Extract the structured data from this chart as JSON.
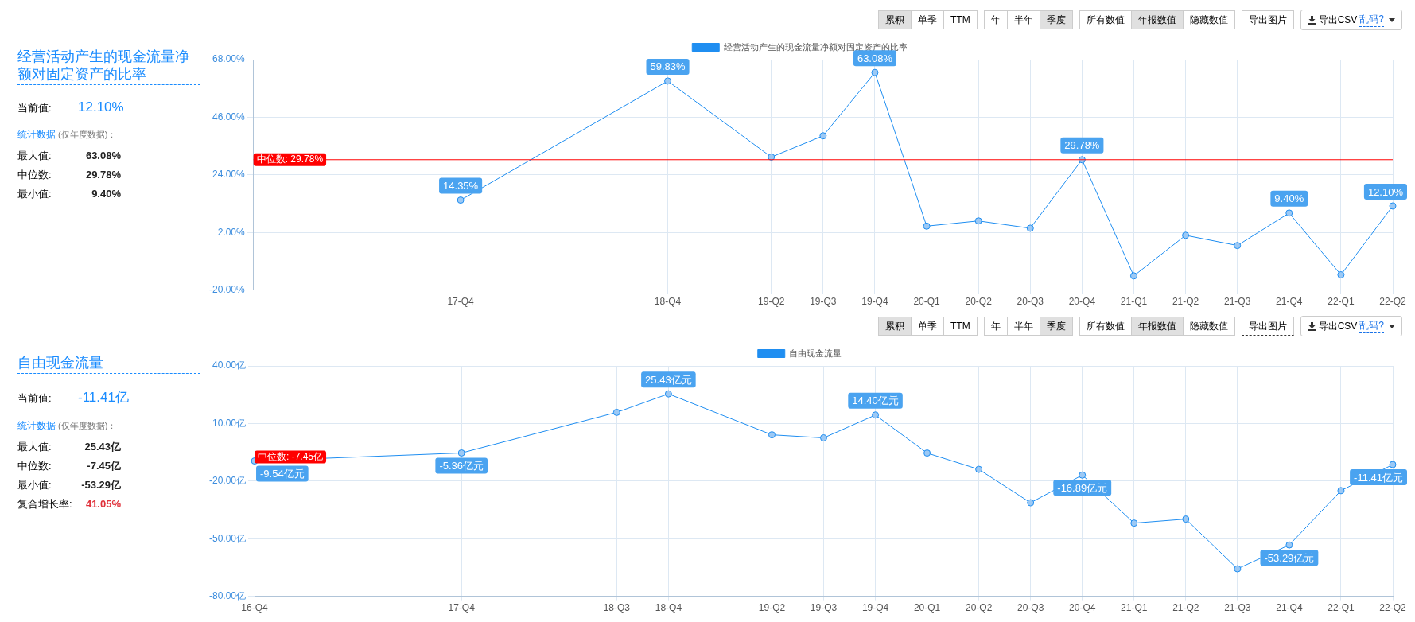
{
  "chart_data": [
    {
      "type": "line",
      "legend": "top",
      "grid": true,
      "marker": "circle",
      "annotations": [
        "经营活动产生的现金流量净额对固定资产的比率",
        "当前值:\t12.10%",
        "统计数据\t(仅年度数据)：",
        "最大值:\t63.08%",
        "中位数:\t29.78%",
        "最小值:\t9.40%",
        "累积",
        "单季",
        "TTM",
        "年",
        "半年",
        "季度",
        "所有数值",
        "年报数值",
        "隐藏数值",
        "导出图片",
        "导出CSV",
        "乱码?"
      ],
      "categories": [
        null,
        null,
        null,
        null,
        "17-Q4",
        null,
        null,
        null,
        "18-Q4",
        null,
        "19-Q2",
        "19-Q3",
        "19-Q4",
        "20-Q1",
        "20-Q2",
        "20-Q3",
        "20-Q4",
        "21-Q1",
        "21-Q2",
        "21-Q3",
        "21-Q4",
        "22-Q1",
        "22-Q2"
      ],
      "series": [
        {
          "name": "经营活动产生的现金流量净额对固定资产的比率",
          "color": "#1f8ef1",
          "values": [
            null,
            null,
            null,
            null,
            14.35,
            null,
            null,
            null,
            59.83,
            null,
            30.8,
            38.9,
            63.08,
            4.4,
            6.4,
            3.6,
            29.78,
            -14.6,
            0.9,
            -3,
            9.4,
            -14.2,
            12.1
          ],
          "value_labels": [
            null,
            null,
            null,
            null,
            "14.35%",
            null,
            null,
            null,
            "59.83%",
            null,
            null,
            null,
            "63.08%",
            null,
            null,
            null,
            "29.78%",
            null,
            null,
            null,
            "9.40%",
            null,
            "12.10%"
          ]
        }
      ],
      "ylim": [
        -20,
        68
      ],
      "yticks": [
        {
          "value": -20,
          "label": "-20.00%"
        },
        {
          "value": 2,
          "label": "2.00%"
        },
        {
          "value": 24,
          "label": "24.00%"
        },
        {
          "value": 46,
          "label": "46.00%"
        },
        {
          "value": 68,
          "label": "68.00%"
        }
      ],
      "ref_lines": [
        {
          "axis": "y",
          "value": 29.78,
          "label": "中位数: 29.78%",
          "color": "#ff0000"
        }
      ]
    },
    {
      "type": "line",
      "legend": "top",
      "grid": true,
      "marker": "circle",
      "annotations": [
        "自由现金流量",
        "当前值:\t-11.41亿",
        "统计数据\t(仅年度数据)：",
        "最大值:\t25.43亿",
        "中位数:\t-7.45亿",
        "最小值:\t-53.29亿",
        "复合增长率:\t41.05%",
        "累积",
        "单季",
        "TTM",
        "年",
        "半年",
        "季度",
        "所有数值",
        "年报数值",
        "隐藏数值",
        "导出图片",
        "导出CSV",
        "乱码?"
      ],
      "categories": [
        "16-Q4",
        null,
        null,
        null,
        "17-Q4",
        null,
        null,
        "18-Q3",
        "18-Q4",
        null,
        "19-Q2",
        "19-Q3",
        "19-Q4",
        "20-Q1",
        "20-Q2",
        "20-Q3",
        "20-Q4",
        "21-Q1",
        "21-Q2",
        "21-Q3",
        "21-Q4",
        "22-Q1",
        "22-Q2"
      ],
      "series": [
        {
          "name": "自由现金流量",
          "color": "#1f8ef1",
          "values": [
            -9.54,
            null,
            null,
            null,
            -5.36,
            null,
            null,
            15.8,
            25.43,
            null,
            4.1,
            2.5,
            14.4,
            -5.4,
            -13.9,
            -31.3,
            -16.89,
            -41.9,
            -39.8,
            -65.7,
            -53.29,
            -25,
            -11.41
          ],
          "value_labels": [
            "-9.54亿元",
            null,
            null,
            null,
            "-5.36亿元",
            null,
            null,
            null,
            "25.43亿元",
            null,
            null,
            null,
            "14.40亿元",
            null,
            null,
            null,
            "-16.89亿元",
            null,
            null,
            null,
            "-53.29亿元",
            null,
            "-11.41亿元"
          ]
        }
      ],
      "ylim": [
        -80,
        40
      ],
      "yticks": [
        {
          "value": -80,
          "label": "-80.00亿"
        },
        {
          "value": -50,
          "label": "-50.00亿"
        },
        {
          "value": -20,
          "label": "-20.00亿"
        },
        {
          "value": 10,
          "label": "10.00亿"
        },
        {
          "value": 40,
          "label": "40.00亿"
        }
      ],
      "ref_lines": [
        {
          "axis": "y",
          "value": -7.45,
          "label": "中位数: -7.45亿",
          "color": "#ff0000"
        }
      ]
    }
  ]
}
